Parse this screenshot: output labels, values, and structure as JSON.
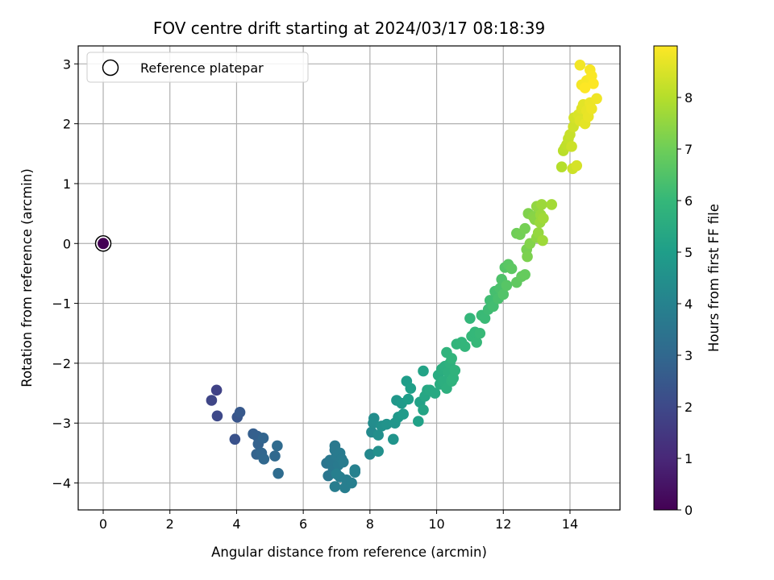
{
  "chart_data": {
    "type": "scatter",
    "title": "FOV centre drift starting at 2024/03/17 08:18:39",
    "xlabel": "Angular distance from reference (arcmin)",
    "ylabel": "Rotation from reference (arcmin)",
    "colorbar_label": "Hours from first FF file",
    "xlim": [
      -0.75,
      15.5
    ],
    "ylim": [
      -4.45,
      3.3
    ],
    "x_ticks": [
      0,
      2,
      4,
      6,
      8,
      10,
      12,
      14
    ],
    "y_ticks": [
      3,
      2,
      1,
      0,
      -1,
      -2,
      -3,
      -4
    ],
    "x_tick_labels": [
      "0",
      "2",
      "4",
      "6",
      "8",
      "10",
      "12",
      "14"
    ],
    "y_tick_labels": [
      "3",
      "2",
      "1",
      "0",
      "−1",
      "−2",
      "−3",
      "−4"
    ],
    "colorbar_range": [
      0,
      9
    ],
    "colorbar_ticks": [
      0,
      1,
      2,
      3,
      4,
      5,
      6,
      7,
      8
    ],
    "colorbar_tick_labels": [
      "0",
      "1",
      "2",
      "3",
      "4",
      "5",
      "6",
      "7",
      "8"
    ],
    "colormap": "viridis",
    "grid": true,
    "legend": {
      "placement": "top-left",
      "entries": [
        "Reference platepar"
      ]
    },
    "reference_point": {
      "x": 0,
      "y": 0,
      "hours": 0,
      "name": "Reference platepar"
    },
    "points": [
      [
        3.4,
        -2.45,
        1.8
      ],
      [
        3.25,
        -2.62,
        1.9
      ],
      [
        3.42,
        -2.88,
        2.0
      ],
      [
        3.95,
        -3.27,
        2.3
      ],
      [
        4.02,
        -2.9,
        2.4
      ],
      [
        4.1,
        -2.82,
        2.5
      ],
      [
        4.5,
        -3.18,
        2.7
      ],
      [
        4.62,
        -3.22,
        2.75
      ],
      [
        4.65,
        -3.35,
        2.8
      ],
      [
        4.6,
        -3.52,
        2.85
      ],
      [
        4.8,
        -3.25,
        2.9
      ],
      [
        4.75,
        -3.5,
        2.95
      ],
      [
        4.82,
        -3.6,
        3.0
      ],
      [
        5.15,
        -3.55,
        3.05
      ],
      [
        5.22,
        -3.38,
        3.1
      ],
      [
        5.25,
        -3.84,
        3.15
      ],
      [
        6.7,
        -3.67,
        3.5
      ],
      [
        6.75,
        -3.88,
        3.55
      ],
      [
        6.8,
        -3.62,
        3.6
      ],
      [
        6.9,
        -3.78,
        3.62
      ],
      [
        6.95,
        -3.38,
        3.65
      ],
      [
        6.95,
        -3.45,
        3.66
      ],
      [
        7.0,
        -3.55,
        3.68
      ],
      [
        7.05,
        -3.7,
        3.7
      ],
      [
        7.1,
        -3.5,
        3.72
      ],
      [
        7.15,
        -3.6,
        3.74
      ],
      [
        7.2,
        -3.65,
        3.76
      ],
      [
        6.95,
        -4.06,
        3.8
      ],
      [
        7.1,
        -3.9,
        3.82
      ],
      [
        7.25,
        -4.08,
        3.85
      ],
      [
        7.3,
        -3.95,
        3.86
      ],
      [
        7.45,
        -4.0,
        3.88
      ],
      [
        7.0,
        -3.85,
        3.9
      ],
      [
        7.55,
        -3.78,
        3.92
      ],
      [
        7.55,
        -3.82,
        3.95
      ],
      [
        8.0,
        -3.52,
        4.2
      ],
      [
        8.05,
        -3.15,
        4.3
      ],
      [
        8.1,
        -3.0,
        4.35
      ],
      [
        8.12,
        -2.92,
        4.4
      ],
      [
        8.25,
        -3.2,
        4.45
      ],
      [
        8.25,
        -3.47,
        4.5
      ],
      [
        8.35,
        -3.05,
        4.55
      ],
      [
        8.5,
        -3.02,
        4.6
      ],
      [
        8.7,
        -3.27,
        4.65
      ],
      [
        8.75,
        -3.0,
        4.7
      ],
      [
        8.8,
        -2.62,
        4.75
      ],
      [
        8.85,
        -2.9,
        4.8
      ],
      [
        8.95,
        -2.67,
        4.85
      ],
      [
        9.0,
        -2.85,
        4.9
      ],
      [
        9.1,
        -2.3,
        4.95
      ],
      [
        9.15,
        -2.6,
        5.0
      ],
      [
        9.22,
        -2.42,
        5.05
      ],
      [
        9.45,
        -2.97,
        5.1
      ],
      [
        9.5,
        -2.65,
        5.15
      ],
      [
        9.6,
        -2.13,
        5.2
      ],
      [
        9.6,
        -2.78,
        5.25
      ],
      [
        9.65,
        -2.55,
        5.3
      ],
      [
        9.72,
        -2.45,
        5.35
      ],
      [
        9.8,
        -2.45,
        5.4
      ],
      [
        9.95,
        -2.5,
        5.45
      ],
      [
        10.05,
        -2.2,
        5.5
      ],
      [
        10.1,
        -2.35,
        5.55
      ],
      [
        10.15,
        -2.1,
        5.6
      ],
      [
        10.2,
        -2.3,
        5.62
      ],
      [
        10.25,
        -2.05,
        5.65
      ],
      [
        10.3,
        -2.42,
        5.68
      ],
      [
        10.35,
        -2.15,
        5.7
      ],
      [
        10.4,
        -2.0,
        5.72
      ],
      [
        10.45,
        -2.3,
        5.75
      ],
      [
        10.5,
        -2.25,
        5.78
      ],
      [
        10.55,
        -2.12,
        5.8
      ],
      [
        10.3,
        -1.82,
        5.82
      ],
      [
        10.45,
        -1.92,
        5.85
      ],
      [
        10.6,
        -1.68,
        5.88
      ],
      [
        10.75,
        -1.65,
        5.9
      ],
      [
        10.85,
        -1.72,
        5.92
      ],
      [
        11.0,
        -1.25,
        5.95
      ],
      [
        11.05,
        -1.55,
        5.98
      ],
      [
        11.15,
        -1.48,
        6.0
      ],
      [
        11.2,
        -1.65,
        6.02
      ],
      [
        11.3,
        -1.5,
        6.05
      ],
      [
        11.35,
        -1.2,
        6.08
      ],
      [
        11.45,
        -1.25,
        6.1
      ],
      [
        11.55,
        -1.1,
        6.15
      ],
      [
        11.6,
        -0.95,
        6.2
      ],
      [
        11.7,
        -1.05,
        6.25
      ],
      [
        11.75,
        -0.8,
        6.3
      ],
      [
        11.85,
        -0.92,
        6.35
      ],
      [
        11.9,
        -0.75,
        6.4
      ],
      [
        11.95,
        -0.6,
        6.45
      ],
      [
        12.0,
        -0.85,
        6.5
      ],
      [
        12.05,
        -0.4,
        6.55
      ],
      [
        12.1,
        -0.7,
        6.6
      ],
      [
        12.15,
        -0.35,
        6.65
      ],
      [
        12.25,
        -0.42,
        6.7
      ],
      [
        12.4,
        -0.65,
        6.75
      ],
      [
        12.55,
        -0.55,
        6.8
      ],
      [
        12.65,
        -0.52,
        6.85
      ],
      [
        12.4,
        0.17,
        7.0
      ],
      [
        12.5,
        0.15,
        7.05
      ],
      [
        12.65,
        0.25,
        7.1
      ],
      [
        12.7,
        -0.1,
        7.15
      ],
      [
        12.72,
        -0.22,
        7.2
      ],
      [
        12.75,
        0.5,
        7.25
      ],
      [
        12.8,
        0.0,
        7.3
      ],
      [
        12.9,
        0.45,
        7.35
      ],
      [
        12.95,
        0.4,
        7.4
      ],
      [
        13.0,
        0.1,
        7.45
      ],
      [
        13.0,
        0.62,
        7.5
      ],
      [
        13.05,
        0.18,
        7.55
      ],
      [
        13.1,
        0.35,
        7.6
      ],
      [
        13.12,
        0.48,
        7.62
      ],
      [
        13.15,
        0.65,
        7.65
      ],
      [
        13.18,
        0.05,
        7.68
      ],
      [
        13.2,
        0.42,
        7.7
      ],
      [
        13.45,
        0.65,
        7.75
      ],
      [
        13.75,
        1.28,
        8.0
      ],
      [
        13.8,
        1.55,
        8.05
      ],
      [
        13.85,
        1.6,
        8.1
      ],
      [
        13.9,
        1.65,
        8.15
      ],
      [
        13.95,
        1.75,
        8.2
      ],
      [
        14.0,
        1.82,
        8.25
      ],
      [
        14.05,
        1.62,
        8.3
      ],
      [
        14.08,
        1.25,
        8.32
      ],
      [
        14.1,
        1.95,
        8.35
      ],
      [
        14.12,
        2.1,
        8.4
      ],
      [
        14.2,
        1.3,
        8.45
      ],
      [
        14.25,
        2.15,
        8.5
      ],
      [
        14.3,
        2.05,
        8.55
      ],
      [
        14.35,
        2.25,
        8.6
      ],
      [
        14.4,
        2.32,
        8.62
      ],
      [
        14.45,
        2.0,
        8.65
      ],
      [
        14.5,
        2.22,
        8.7
      ],
      [
        14.55,
        2.12,
        8.72
      ],
      [
        14.6,
        2.35,
        8.75
      ],
      [
        14.65,
        2.25,
        8.78
      ],
      [
        14.8,
        2.42,
        8.8
      ],
      [
        14.3,
        2.98,
        8.85
      ],
      [
        14.35,
        2.65,
        8.88
      ],
      [
        14.5,
        2.72,
        8.9
      ],
      [
        14.6,
        2.9,
        8.92
      ],
      [
        14.65,
        2.8,
        8.95
      ],
      [
        14.7,
        2.67,
        8.98
      ],
      [
        14.45,
        2.6,
        9.0
      ]
    ]
  }
}
